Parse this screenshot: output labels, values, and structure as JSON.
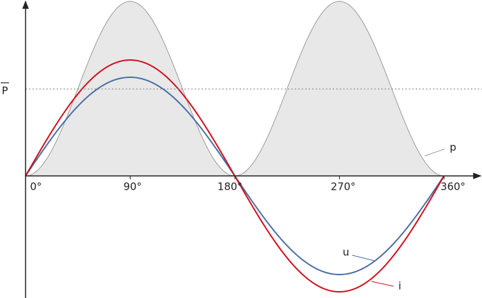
{
  "axis": {
    "x_ticks": [
      "0°",
      "90°",
      "180°",
      "270°",
      "360°"
    ],
    "mean_power": "P"
  },
  "curves": {
    "power": "p",
    "voltage": "u",
    "current": "i"
  }
}
